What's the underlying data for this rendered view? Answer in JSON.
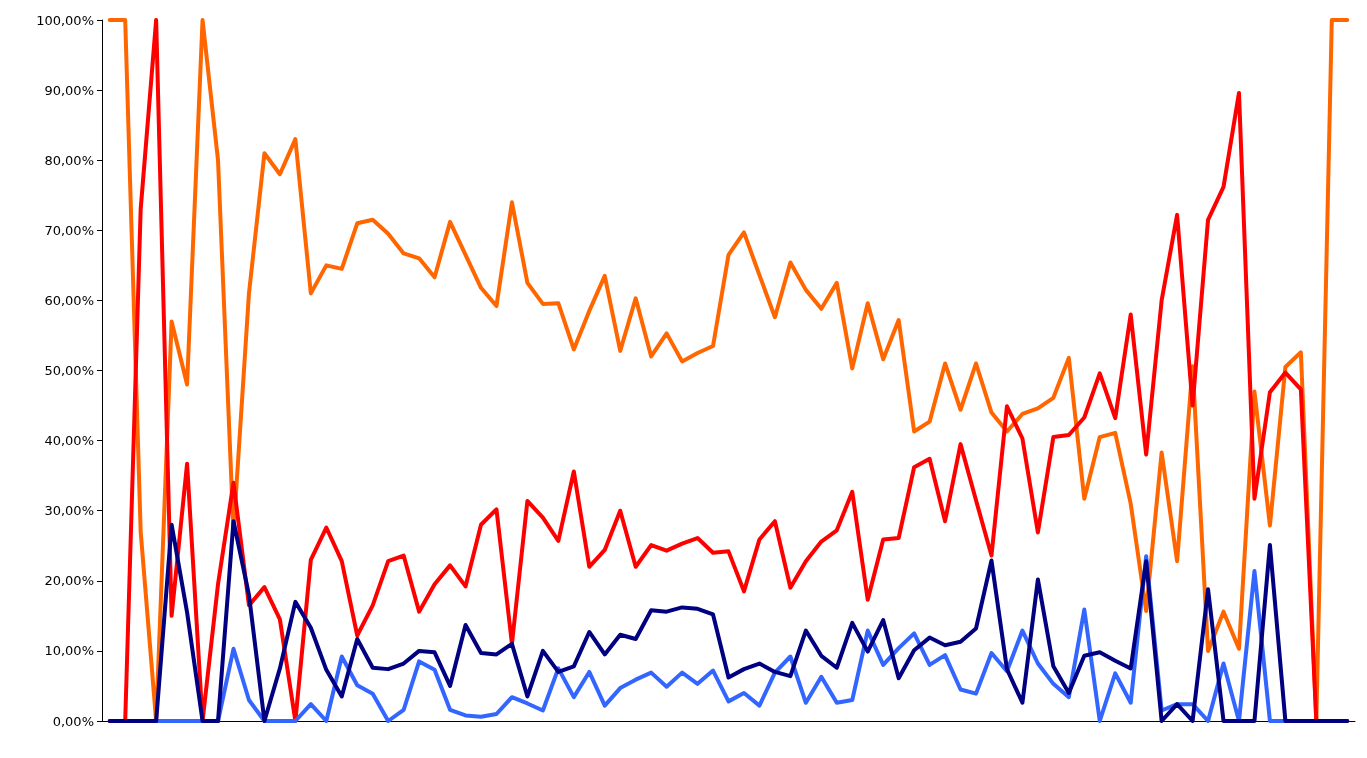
{
  "chart_data": {
    "type": "line",
    "categories": [
      null,
      null,
      null,
      null,
      null,
      null,
      null,
      null,
      null,
      null,
      null,
      null,
      null,
      null,
      null,
      null,
      null,
      null,
      null,
      null,
      null,
      null,
      null,
      null,
      null,
      null,
      null,
      null,
      null,
      null,
      null,
      null,
      null,
      null,
      null,
      null,
      null,
      null,
      null,
      null,
      null,
      null,
      null,
      null,
      null,
      null,
      null,
      null,
      null,
      null,
      null,
      null,
      null,
      null,
      null,
      null,
      null,
      null,
      null,
      null,
      null,
      null,
      null,
      null,
      null,
      null,
      null,
      null,
      null,
      null,
      null,
      null,
      null,
      null,
      null,
      null,
      null,
      null,
      null,
      null,
      null
    ],
    "ylim": [
      0,
      100
    ],
    "yticks": [
      {
        "value": 0,
        "label": "0,00%"
      },
      {
        "value": 10,
        "label": "10,00%"
      },
      {
        "value": 20,
        "label": "20,00%"
      },
      {
        "value": 30,
        "label": "30,00%"
      },
      {
        "value": 40,
        "label": "40,00%"
      },
      {
        "value": 50,
        "label": "50,00%"
      },
      {
        "value": 60,
        "label": "60,00%"
      },
      {
        "value": 70,
        "label": "70,00%"
      },
      {
        "value": 80,
        "label": "80,00%"
      },
      {
        "value": 90,
        "label": "90,00%"
      },
      {
        "value": 100,
        "label": "100,00%"
      }
    ],
    "grid": false,
    "marker": "none",
    "line_style": "solid",
    "series": [
      {
        "color": "#ff6600",
        "values": [
          100,
          100,
          27,
          0,
          57,
          48,
          100,
          80,
          27,
          61,
          81,
          78,
          83,
          61,
          65,
          64.5,
          71,
          71.5,
          69.5,
          66.7,
          66,
          63.3,
          71.2,
          66.5,
          61.8,
          59.2,
          74,
          62.5,
          59.5,
          59.6,
          53,
          58.5,
          63.5,
          52.8,
          60.3,
          52,
          55.3,
          51.3,
          52.5,
          53.5,
          66.5,
          69.7,
          63.6,
          57.6,
          65.4,
          61.5,
          58.8,
          62.5,
          50.3,
          59.6,
          51.6,
          57.2,
          41.3,
          42.7,
          51,
          44.4,
          51,
          44,
          41.3,
          43.8,
          44.6,
          46.1,
          51.8,
          31.7,
          40.5,
          41.1,
          31,
          15.7,
          38.3,
          22.8,
          50.6,
          10,
          15.6,
          10.3,
          47,
          27.9,
          50.5,
          52.6,
          0,
          100,
          100
        ]
      },
      {
        "color": "#ff0000",
        "values": [
          0,
          0,
          73,
          100,
          15,
          36.7,
          0,
          19.5,
          34,
          16.5,
          19.1,
          14.5,
          0,
          23,
          27.6,
          22.8,
          12.2,
          16.5,
          22.8,
          23.6,
          15.6,
          19.5,
          22.2,
          19.2,
          28,
          30.2,
          11,
          31.4,
          29,
          25.7,
          35.6,
          22,
          24.4,
          30,
          22,
          25.1,
          24.3,
          25.3,
          26.1,
          24,
          24.2,
          18.5,
          25.9,
          28.5,
          19,
          22.8,
          25.6,
          27.2,
          32.7,
          17.3,
          25.9,
          26.1,
          36.2,
          37.4,
          28.5,
          39.5,
          31.5,
          23.6,
          44.9,
          40.3,
          26.9,
          40.5,
          40.8,
          43.3,
          49.6,
          43.2,
          58,
          38,
          60,
          72.2,
          45,
          71.5,
          76.2,
          89.6,
          31.7,
          46.9,
          49.7,
          47.3,
          0,
          0,
          0
        ]
      },
      {
        "color": "#3366ff",
        "values": [
          null,
          null,
          0,
          0,
          0,
          0,
          0,
          0,
          10.3,
          3,
          0,
          0,
          0,
          2.4,
          0,
          9.2,
          5.1,
          3.9,
          0,
          1.6,
          8.5,
          7.3,
          1.6,
          0.8,
          0.6,
          1,
          3.4,
          2.5,
          1.5,
          7.5,
          3.4,
          7,
          2.2,
          4.7,
          5.9,
          6.9,
          4.9,
          6.9,
          5.3,
          7.2,
          2.8,
          4,
          2.2,
          6.9,
          9.2,
          2.6,
          6.3,
          2.6,
          3,
          12.9,
          8,
          10.4,
          12.5,
          8,
          9.4,
          4.5,
          3.9,
          9.7,
          7.1,
          12.9,
          8.2,
          5.3,
          3.4,
          15.9,
          0,
          6.8,
          2.6,
          23.5,
          1.5,
          2.4,
          2.4,
          0,
          8.2,
          0,
          21.4,
          0,
          0,
          0,
          null,
          null,
          null
        ]
      },
      {
        "color": "#000080",
        "values": [
          0,
          0,
          0,
          0,
          28,
          15.5,
          0,
          0,
          28.5,
          18,
          0,
          7.5,
          17,
          13.3,
          7.3,
          3.5,
          11.7,
          7.6,
          7.4,
          8.2,
          10,
          9.8,
          5,
          13.7,
          9.7,
          9.5,
          11,
          3.5,
          10,
          7,
          7.8,
          12.7,
          9.5,
          12.3,
          11.7,
          15.8,
          15.6,
          16.2,
          16,
          15.2,
          6.2,
          7.4,
          8.2,
          7,
          6.4,
          12.9,
          9.3,
          7.6,
          14,
          9.9,
          14.4,
          6.1,
          10.1,
          11.9,
          10.8,
          11.3,
          13.2,
          22.9,
          7.4,
          2.6,
          20.2,
          7.8,
          4,
          9.3,
          9.8,
          8.6,
          7.5,
          22.8,
          0,
          2.4,
          0,
          18.8,
          0,
          0,
          0,
          25.1,
          0,
          0,
          0,
          0,
          0
        ]
      }
    ]
  }
}
